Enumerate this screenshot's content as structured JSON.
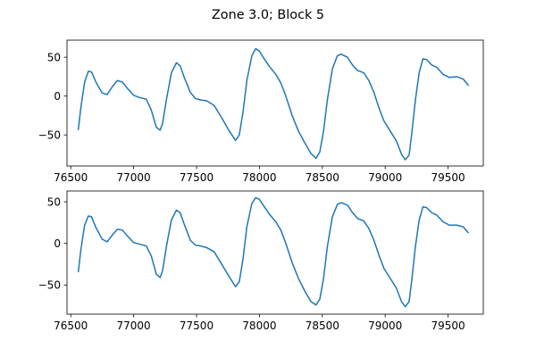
{
  "figure": {
    "title": "Zone 3.0; Block 5"
  },
  "colors": {
    "line": "#1f77b4",
    "axes": "#000000",
    "background": "#ffffff"
  },
  "chart_data": [
    {
      "type": "line",
      "title": "",
      "xlabel": "",
      "ylabel": "",
      "xlim": [
        76470,
        79780
      ],
      "ylim": [
        -90,
        72
      ],
      "grid": false,
      "xticks": [
        76500,
        77000,
        77500,
        78000,
        78500,
        79000,
        79500
      ],
      "xtick_labels": [
        "76500",
        "77000",
        "77500",
        "78000",
        "78500",
        "79000",
        "79500"
      ],
      "yticks": [
        -50,
        0,
        50
      ],
      "ytick_labels": [
        "−50",
        "0",
        "50"
      ],
      "series": [
        {
          "x": [
            76560,
            76580,
            76610,
            76640,
            76665,
            76700,
            76750,
            76790,
            76830,
            76870,
            76910,
            76950,
            77000,
            77050,
            77100,
            77140,
            77180,
            77210,
            77230,
            77260,
            77300,
            77340,
            77370,
            77400,
            77450,
            77490,
            77530,
            77580,
            77640,
            77700,
            77760,
            77810,
            77840,
            77870,
            77900,
            77940,
            77970,
            78000,
            78030,
            78080,
            78130,
            78170,
            78210,
            78260,
            78310,
            78360,
            78410,
            78450,
            78480,
            78510,
            78540,
            78580,
            78620,
            78650,
            78700,
            78740,
            78780,
            78830,
            78870,
            78910,
            78950,
            78990,
            79040,
            79090,
            79130,
            79160,
            79190,
            79210,
            79240,
            79270,
            79300,
            79330,
            79370,
            79410,
            79460,
            79510,
            79570,
            79620,
            79660
          ],
          "y": [
            -43,
            -15,
            18,
            32,
            31,
            18,
            4,
            2,
            12,
            20,
            18,
            10,
            1,
            -2,
            -4,
            -18,
            -40,
            -44,
            -35,
            -5,
            30,
            43,
            39,
            25,
            5,
            -3,
            -5,
            -6,
            -12,
            -28,
            -45,
            -57,
            -50,
            -20,
            20,
            52,
            61,
            58,
            50,
            38,
            28,
            17,
            0,
            -25,
            -45,
            -60,
            -74,
            -80,
            -72,
            -45,
            -5,
            35,
            52,
            54,
            50,
            40,
            33,
            30,
            20,
            5,
            -15,
            -32,
            -45,
            -58,
            -75,
            -82,
            -76,
            -50,
            -5,
            30,
            48,
            47,
            40,
            37,
            28,
            24,
            25,
            22,
            14
          ]
        }
      ]
    },
    {
      "type": "line",
      "title": "",
      "xlabel": "",
      "ylabel": "",
      "xlim": [
        76470,
        79780
      ],
      "ylim": [
        -85,
        63
      ],
      "grid": false,
      "xticks": [
        76500,
        77000,
        77500,
        78000,
        78500,
        79000,
        79500
      ],
      "xtick_labels": [
        "76500",
        "77000",
        "77500",
        "78000",
        "78500",
        "79000",
        "79500"
      ],
      "yticks": [
        -50,
        0,
        50
      ],
      "ytick_labels": [
        "−50",
        "0",
        "50"
      ],
      "series": [
        {
          "x": [
            76560,
            76580,
            76610,
            76640,
            76665,
            76700,
            76750,
            76790,
            76830,
            76870,
            76910,
            76950,
            77000,
            77050,
            77100,
            77140,
            77180,
            77210,
            77230,
            77260,
            77300,
            77340,
            77370,
            77400,
            77450,
            77490,
            77530,
            77580,
            77640,
            77700,
            77760,
            77810,
            77840,
            77870,
            77900,
            77940,
            77970,
            78000,
            78030,
            78080,
            78130,
            78170,
            78210,
            78260,
            78310,
            78360,
            78410,
            78450,
            78480,
            78510,
            78540,
            78580,
            78620,
            78650,
            78700,
            78740,
            78780,
            78830,
            78870,
            78910,
            78950,
            78990,
            79040,
            79090,
            79130,
            79160,
            79190,
            79210,
            79240,
            79270,
            79300,
            79330,
            79370,
            79410,
            79460,
            79510,
            79570,
            79620,
            79660
          ],
          "y": [
            -34,
            -8,
            22,
            33,
            32,
            19,
            5,
            2,
            10,
            17,
            16,
            9,
            1,
            -1,
            -3,
            -15,
            -37,
            -41,
            -33,
            -4,
            28,
            40,
            37,
            24,
            4,
            -2,
            -3,
            -5,
            -10,
            -25,
            -40,
            -52,
            -46,
            -18,
            20,
            48,
            55,
            53,
            46,
            35,
            26,
            16,
            0,
            -23,
            -42,
            -57,
            -70,
            -74,
            -67,
            -42,
            -4,
            32,
            47,
            49,
            46,
            37,
            30,
            27,
            18,
            4,
            -14,
            -30,
            -42,
            -54,
            -70,
            -76,
            -70,
            -46,
            -4,
            28,
            44,
            43,
            37,
            34,
            26,
            22,
            22,
            20,
            13
          ]
        }
      ]
    }
  ]
}
